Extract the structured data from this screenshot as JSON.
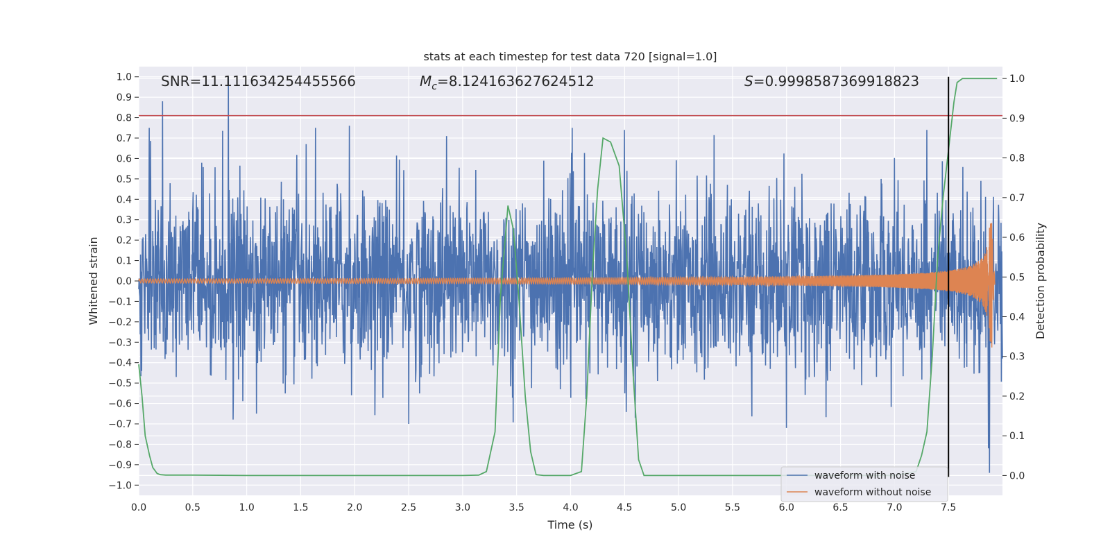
{
  "chart_data": {
    "type": "line",
    "title": "stats at each timestep for test data 720 [signal=1.0]",
    "xlabel": "Time (s)",
    "ylabel_left": "Whitened strain",
    "ylabel_right": "Detection probability",
    "xlim": [
      0.0,
      8.0
    ],
    "ylim_left": [
      -1.05,
      1.05
    ],
    "ylim_right": [
      -0.05,
      1.03
    ],
    "x_ticks": [
      "0.0",
      "0.5",
      "1.0",
      "1.5",
      "2.0",
      "2.5",
      "3.0",
      "3.5",
      "4.0",
      "4.5",
      "5.0",
      "5.5",
      "6.0",
      "6.5",
      "7.0",
      "7.5"
    ],
    "y_ticks_left": [
      "1.0",
      "0.9",
      "0.8",
      "0.7",
      "0.6",
      "0.5",
      "0.4",
      "0.3",
      "0.2",
      "0.1",
      "0.0",
      "−0.1",
      "−0.2",
      "−0.3",
      "−0.4",
      "−0.5",
      "−0.6",
      "−0.7",
      "−0.8",
      "−0.9",
      "−1.0"
    ],
    "y_ticks_right": [
      "1.0",
      "0.9",
      "0.8",
      "0.7",
      "0.6",
      "0.5",
      "0.4",
      "0.3",
      "0.2",
      "0.1",
      "0.0"
    ],
    "grid": true,
    "legend_position": "bottom-right",
    "annotations": {
      "snr": "SNR=11.111634254455566",
      "mc_prefix": "M",
      "mc_sub": "c",
      "mc_value": "=8.124163627624512",
      "s_prefix": "S",
      "s_value": "=0.9998587369918823"
    },
    "threshold_line": {
      "axis": "left",
      "y": 0.81,
      "color": "#c44e52"
    },
    "vertical_marker": {
      "x": 7.5,
      "y_range": [
        -0.96,
        1.0
      ],
      "color": "#000000"
    },
    "series": [
      {
        "name": "waveform with noise",
        "axis": "left",
        "color": "#4c72b0",
        "kind": "noise",
        "x_range": [
          0.0,
          8.0
        ],
        "envelope": {
          "typical_amplitude": 0.3,
          "max": 1.0,
          "min": -0.94
        },
        "peaks": [
          {
            "x": 0.22,
            "y": 0.88
          },
          {
            "x": 0.83,
            "y": 1.0
          },
          {
            "x": 1.55,
            "y": 0.67
          },
          {
            "x": 1.95,
            "y": 0.76
          },
          {
            "x": 2.85,
            "y": 0.71
          },
          {
            "x": 4.5,
            "y": 0.74
          },
          {
            "x": 7.3,
            "y": 0.74
          },
          {
            "x": 7.88,
            "y": -0.94
          },
          {
            "x": 7.87,
            "y": -0.82
          },
          {
            "x": 6.0,
            "y": -0.72
          },
          {
            "x": 2.5,
            "y": -0.7
          },
          {
            "x": 4.6,
            "y": -0.67
          }
        ]
      },
      {
        "name": "waveform without noise",
        "axis": "left",
        "color": "#dd8452",
        "kind": "chirp",
        "x_range": [
          0.0,
          7.93
        ],
        "amplitude_start": 0.01,
        "amplitude_end": 0.3,
        "merger_time": 7.9,
        "ringdown_min": -0.45
      },
      {
        "name": "detection probability",
        "axis": "right",
        "color": "#55a868",
        "x": [
          0.0,
          0.03,
          0.06,
          0.1,
          0.13,
          0.17,
          0.2,
          0.25,
          0.5,
          1.0,
          2.0,
          3.0,
          3.15,
          3.22,
          3.3,
          3.35,
          3.42,
          3.47,
          3.52,
          3.58,
          3.63,
          3.68,
          3.75,
          3.85,
          4.0,
          4.1,
          4.15,
          4.2,
          4.25,
          4.3,
          4.37,
          4.45,
          4.52,
          4.58,
          4.63,
          4.68,
          4.75,
          4.85,
          5.0,
          6.0,
          7.0,
          7.2,
          7.25,
          7.3,
          7.35,
          7.4,
          7.45,
          7.5,
          7.55,
          7.58,
          7.63,
          7.75,
          7.95
        ],
        "y": [
          0.28,
          0.2,
          0.1,
          0.05,
          0.02,
          0.005,
          0.002,
          0.001,
          0.001,
          0.0,
          0.0,
          0.0,
          0.001,
          0.01,
          0.11,
          0.45,
          0.68,
          0.62,
          0.45,
          0.2,
          0.06,
          0.002,
          0.0,
          0.0,
          0.0,
          0.01,
          0.2,
          0.5,
          0.72,
          0.85,
          0.84,
          0.78,
          0.55,
          0.25,
          0.04,
          0.0,
          0.0,
          0.0,
          0.0,
          0.0,
          0.0,
          0.01,
          0.05,
          0.11,
          0.3,
          0.55,
          0.7,
          0.82,
          0.94,
          0.99,
          1.0,
          1.0,
          1.0
        ]
      }
    ]
  }
}
